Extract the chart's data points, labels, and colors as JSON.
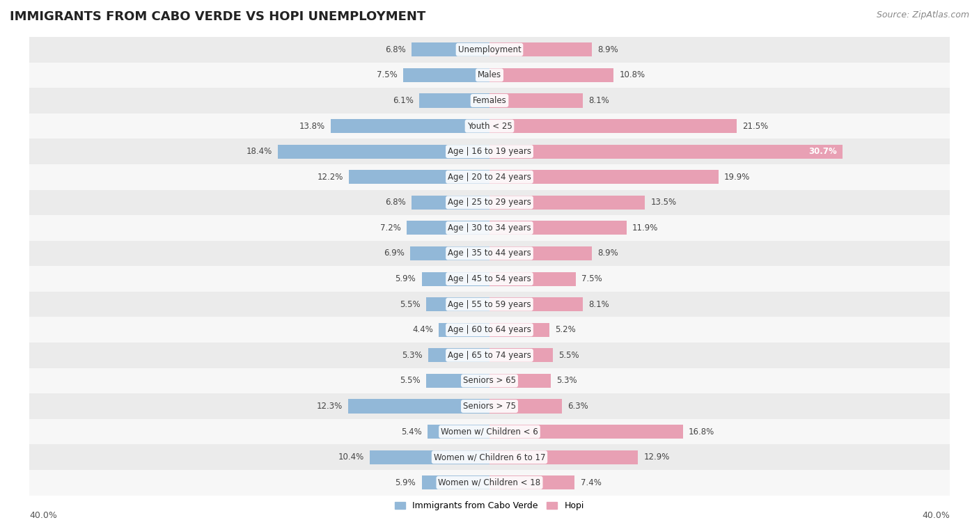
{
  "title": "IMMIGRANTS FROM CABO VERDE VS HOPI UNEMPLOYMENT",
  "source": "Source: ZipAtlas.com",
  "categories": [
    "Unemployment",
    "Males",
    "Females",
    "Youth < 25",
    "Age | 16 to 19 years",
    "Age | 20 to 24 years",
    "Age | 25 to 29 years",
    "Age | 30 to 34 years",
    "Age | 35 to 44 years",
    "Age | 45 to 54 years",
    "Age | 55 to 59 years",
    "Age | 60 to 64 years",
    "Age | 65 to 74 years",
    "Seniors > 65",
    "Seniors > 75",
    "Women w/ Children < 6",
    "Women w/ Children 6 to 17",
    "Women w/ Children < 18"
  ],
  "cabo_verde": [
    6.8,
    7.5,
    6.1,
    13.8,
    18.4,
    12.2,
    6.8,
    7.2,
    6.9,
    5.9,
    5.5,
    4.4,
    5.3,
    5.5,
    12.3,
    5.4,
    10.4,
    5.9
  ],
  "hopi": [
    8.9,
    10.8,
    8.1,
    21.5,
    30.7,
    19.9,
    13.5,
    11.9,
    8.9,
    7.5,
    8.1,
    5.2,
    5.5,
    5.3,
    6.3,
    16.8,
    12.9,
    7.4
  ],
  "cabo_verde_color": "#92b8d8",
  "hopi_color": "#e8a0b4",
  "bar_height": 0.55,
  "xlim": 40.0,
  "row_colors": [
    "#ebebeb",
    "#f7f7f7"
  ],
  "title_fontsize": 13,
  "source_fontsize": 9,
  "category_fontsize": 8.5,
  "value_fontsize": 8.5,
  "legend_fontsize": 9
}
